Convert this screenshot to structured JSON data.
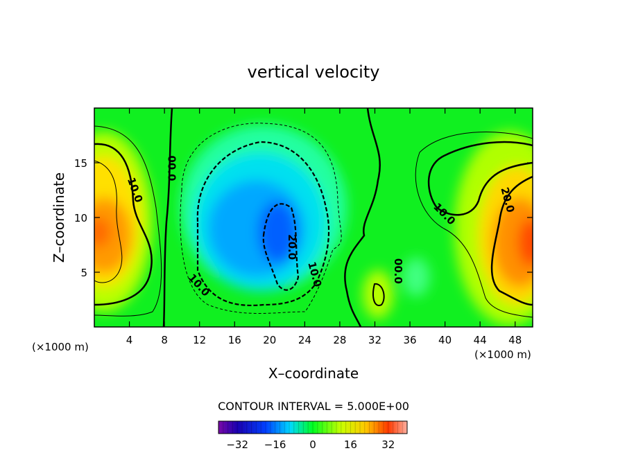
{
  "chart_data": {
    "type": "heatmap",
    "title": "vertical velocity",
    "xlabel": "X–coordinate",
    "ylabel": "Z–coordinate",
    "x_unit": "(×1000 m)",
    "y_unit": "(×1000 m)",
    "xlim": [
      0,
      50
    ],
    "ylim": [
      0,
      20
    ],
    "x_ticks": [
      4,
      8,
      12,
      16,
      20,
      24,
      28,
      32,
      36,
      40,
      44,
      48
    ],
    "y_ticks": [
      5,
      10,
      15
    ],
    "contour_interval_text": "CONTOUR INTERVAL = 5.000E+00",
    "contour_labels": [
      {
        "text": "10.0",
        "x": 4.6,
        "y": 12.5,
        "angle": 70
      },
      {
        "text": "00.0",
        "x": 8.8,
        "y": 14.5,
        "angle": 90
      },
      {
        "text": "10.0",
        "x": 11.9,
        "y": 3.8,
        "angle": 48
      },
      {
        "text": "20.0",
        "x": 22.5,
        "y": 7.3,
        "angle": 90
      },
      {
        "text": "10.0",
        "x": 25.1,
        "y": 4.8,
        "angle": 75
      },
      {
        "text": "00.0",
        "x": 34.6,
        "y": 5.1,
        "angle": 90
      },
      {
        "text": "10.0",
        "x": 39.9,
        "y": 10.3,
        "angle": 45
      },
      {
        "text": "20.0",
        "x": 47.1,
        "y": 11.6,
        "angle": 75
      }
    ],
    "colorbar": {
      "min": -40,
      "max": 40,
      "ticks": [
        "−32",
        "−16",
        "0",
        "16",
        "32"
      ],
      "tick_values": [
        -32,
        -16,
        0,
        16,
        32
      ]
    },
    "grid": false,
    "colors": {
      "background": "#00ff00",
      "frame": "#000000"
    }
  }
}
